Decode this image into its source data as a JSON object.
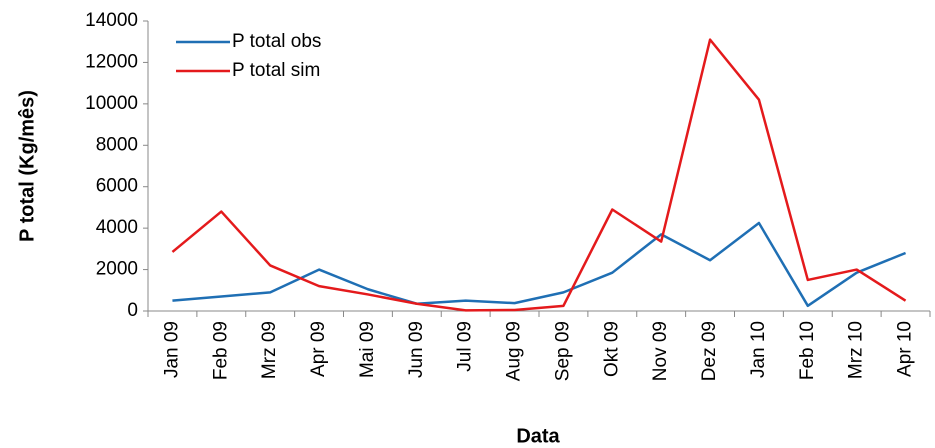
{
  "chart_data": {
    "type": "line",
    "x_label": "Data",
    "y_label": "P total (Kg/mês)",
    "categories": [
      "Jan 09",
      "Feb 09",
      "Mrz 09",
      "Apr 09",
      "Mai 09",
      "Jun 09",
      "Jul 09",
      "Aug 09",
      "Sep 09",
      "Okt 09",
      "Nov 09",
      "Dez 09",
      "Jan 10",
      "Feb 10",
      "Mrz 10",
      "Apr 10"
    ],
    "series": [
      {
        "name": "P total obs",
        "color": "#1f6fb4",
        "values": [
          500,
          700,
          900,
          2000,
          1050,
          350,
          500,
          380,
          900,
          1850,
          3700,
          2450,
          4250,
          250,
          1850,
          2800
        ]
      },
      {
        "name": "P total sim",
        "color": "#e41a1c",
        "values": [
          2850,
          4800,
          2200,
          1200,
          800,
          350,
          30,
          50,
          250,
          4900,
          3350,
          13100,
          10200,
          1500,
          2000,
          500
        ]
      }
    ],
    "ylim": [
      0,
      14000
    ],
    "yticks": [
      0,
      2000,
      4000,
      6000,
      8000,
      10000,
      12000,
      14000
    ],
    "legend": "upper left"
  }
}
